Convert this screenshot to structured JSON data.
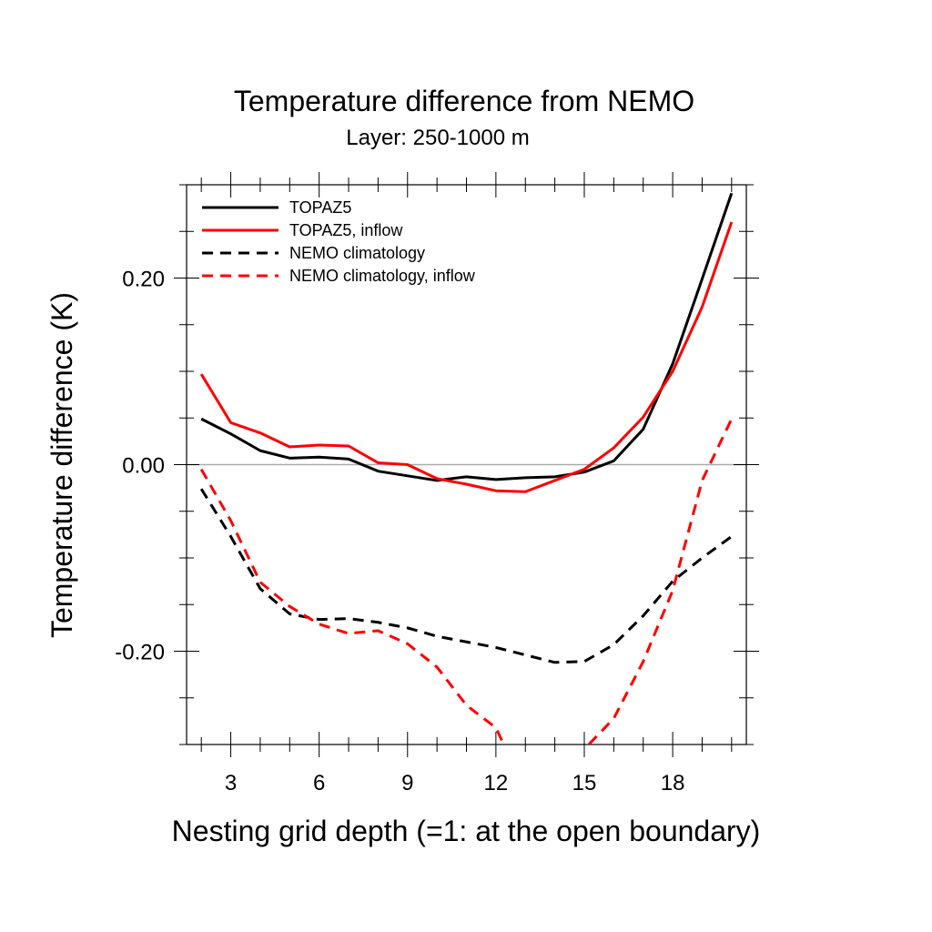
{
  "chart_data": {
    "type": "line",
    "title": "Temperature difference from NEMO",
    "subtitle": "Layer: 250-1000 m",
    "xlabel": "Nesting grid depth (=1: at the open boundary)",
    "ylabel": "Temperature difference (K)",
    "xlim": [
      1.5,
      20.5
    ],
    "ylim": [
      -0.3,
      0.3
    ],
    "xticks": [
      3,
      6,
      9,
      12,
      15,
      18
    ],
    "xtick_labels": [
      "3",
      "6",
      "9",
      "12",
      "15",
      "18"
    ],
    "yticks": [
      -0.2,
      0.0,
      0.2
    ],
    "ytick_labels": [
      "-0.20",
      "0.00",
      "0.20"
    ],
    "zero_line": true,
    "grid": false,
    "legend_placement": "top-left",
    "x": [
      2,
      3,
      4,
      5,
      6,
      7,
      8,
      9,
      10,
      11,
      12,
      13,
      14,
      15,
      16,
      17,
      18,
      19,
      20
    ],
    "series": [
      {
        "name": "TOPAZ5",
        "color": "#000000",
        "dash": "solid",
        "values": [
          0.049,
          0.033,
          0.015,
          0.007,
          0.008,
          0.006,
          -0.007,
          -0.012,
          -0.017,
          -0.013,
          -0.016,
          -0.014,
          -0.013,
          -0.008,
          0.004,
          0.038,
          0.108,
          0.199,
          0.291
        ]
      },
      {
        "name": "TOPAZ5, inflow",
        "color": "#ff0000",
        "dash": "solid",
        "values": [
          0.097,
          0.045,
          0.034,
          0.019,
          0.021,
          0.02,
          0.002,
          0.0,
          -0.015,
          -0.021,
          -0.028,
          -0.029,
          -0.017,
          -0.005,
          0.018,
          0.051,
          0.1,
          0.169,
          0.26
        ]
      },
      {
        "name": "NEMO climatology",
        "color": "#000000",
        "dash": "dashed",
        "values": [
          -0.026,
          -0.077,
          -0.133,
          -0.16,
          -0.166,
          -0.165,
          -0.169,
          -0.175,
          -0.184,
          -0.19,
          -0.196,
          -0.204,
          -0.212,
          -0.211,
          -0.193,
          -0.162,
          -0.125,
          -0.1,
          -0.077
        ]
      },
      {
        "name": "NEMO climatology, inflow",
        "color": "#ff0000",
        "dash": "dashed",
        "values": [
          -0.005,
          -0.06,
          -0.126,
          -0.152,
          -0.171,
          -0.181,
          -0.178,
          -0.192,
          -0.217,
          -0.258,
          -0.282,
          -0.35,
          -0.36,
          -0.305,
          -0.272,
          -0.211,
          -0.135,
          -0.017,
          0.049
        ]
      }
    ]
  }
}
